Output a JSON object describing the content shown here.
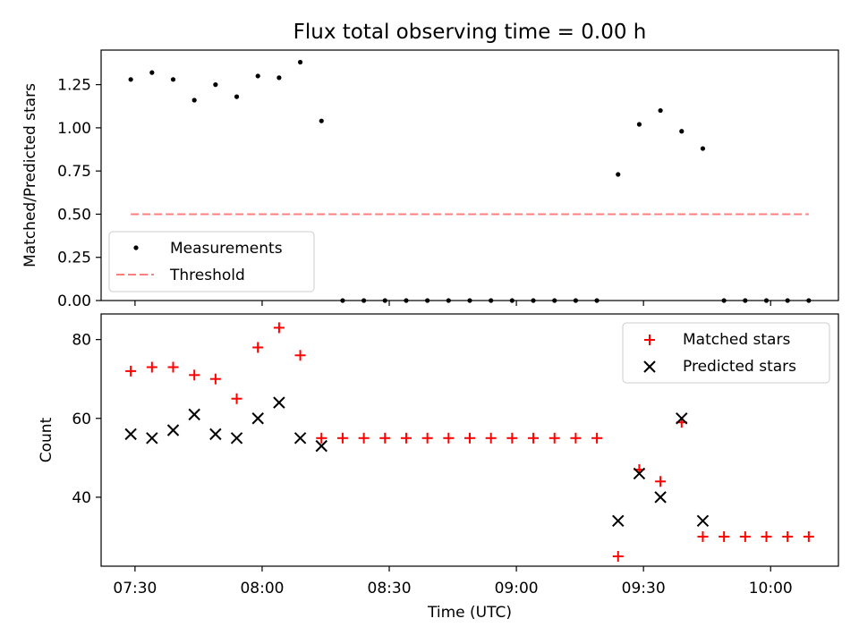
{
  "chart_data": [
    {
      "type": "scatter",
      "title": "Flux total observing time = 0.00 h",
      "xlabel": "",
      "ylabel": "Matched/Predicted stars",
      "xlim": [
        "07:22",
        "10:16"
      ],
      "ylim": [
        0,
        1.45
      ],
      "yticks": [
        "0.00",
        "0.25",
        "0.50",
        "0.75",
        "1.00",
        "1.25"
      ],
      "grid": false,
      "legend_position": "lower-left",
      "series": [
        {
          "name": "Measurements",
          "marker": "dot",
          "color": "#000000",
          "points": [
            [
              "07:29",
              1.28
            ],
            [
              "07:34",
              1.32
            ],
            [
              "07:39",
              1.28
            ],
            [
              "07:44",
              1.16
            ],
            [
              "07:49",
              1.25
            ],
            [
              "07:54",
              1.18
            ],
            [
              "07:59",
              1.3
            ],
            [
              "08:04",
              1.29
            ],
            [
              "08:09",
              1.38
            ],
            [
              "08:14",
              1.04
            ],
            [
              "08:19",
              0.0
            ],
            [
              "08:24",
              0.0
            ],
            [
              "08:29",
              0.0
            ],
            [
              "08:34",
              0.0
            ],
            [
              "08:39",
              0.0
            ],
            [
              "08:44",
              0.0
            ],
            [
              "08:49",
              0.0
            ],
            [
              "08:54",
              0.0
            ],
            [
              "08:59",
              0.0
            ],
            [
              "09:04",
              0.0
            ],
            [
              "09:09",
              0.0
            ],
            [
              "09:14",
              0.0
            ],
            [
              "09:19",
              0.0
            ],
            [
              "09:24",
              0.73
            ],
            [
              "09:29",
              1.02
            ],
            [
              "09:34",
              1.1
            ],
            [
              "09:39",
              0.98
            ],
            [
              "09:44",
              0.88
            ],
            [
              "09:49",
              0.0
            ],
            [
              "09:54",
              0.0
            ],
            [
              "09:59",
              0.0
            ],
            [
              "10:04",
              0.0
            ],
            [
              "10:09",
              0.0
            ]
          ]
        },
        {
          "name": "Threshold",
          "marker": "dashed-line",
          "color": "#ff7f7f",
          "points": [
            [
              "07:29",
              0.5
            ],
            [
              "10:09",
              0.5
            ]
          ]
        }
      ]
    },
    {
      "type": "scatter",
      "title": "",
      "xlabel": "Time (UTC)",
      "ylabel": "Count",
      "xlim": [
        "07:22",
        "10:16"
      ],
      "ylim": [
        22.5,
        86.5
      ],
      "xticks": [
        "07:30",
        "08:00",
        "08:30",
        "09:00",
        "09:30",
        "10:00"
      ],
      "yticks": [
        "40",
        "60",
        "80"
      ],
      "grid": false,
      "legend_position": "upper-right",
      "series": [
        {
          "name": "Matched stars",
          "marker": "plus",
          "color": "#ff0000",
          "points": [
            [
              "07:29",
              72
            ],
            [
              "07:34",
              73
            ],
            [
              "07:39",
              73
            ],
            [
              "07:44",
              71
            ],
            [
              "07:49",
              70
            ],
            [
              "07:54",
              65
            ],
            [
              "07:59",
              78
            ],
            [
              "08:04",
              83
            ],
            [
              "08:09",
              76
            ],
            [
              "08:14",
              55
            ],
            [
              "08:19",
              55
            ],
            [
              "08:24",
              55
            ],
            [
              "08:29",
              55
            ],
            [
              "08:34",
              55
            ],
            [
              "08:39",
              55
            ],
            [
              "08:44",
              55
            ],
            [
              "08:49",
              55
            ],
            [
              "08:54",
              55
            ],
            [
              "08:59",
              55
            ],
            [
              "09:04",
              55
            ],
            [
              "09:09",
              55
            ],
            [
              "09:14",
              55
            ],
            [
              "09:19",
              55
            ],
            [
              "09:24",
              25
            ],
            [
              "09:29",
              47
            ],
            [
              "09:34",
              44
            ],
            [
              "09:39",
              59
            ],
            [
              "09:44",
              30
            ],
            [
              "09:49",
              30
            ],
            [
              "09:54",
              30
            ],
            [
              "09:59",
              30
            ],
            [
              "10:04",
              30
            ],
            [
              "10:09",
              30
            ]
          ]
        },
        {
          "name": "Predicted stars",
          "marker": "x",
          "color": "#000000",
          "points": [
            [
              "07:29",
              56
            ],
            [
              "07:34",
              55
            ],
            [
              "07:39",
              57
            ],
            [
              "07:44",
              61
            ],
            [
              "07:49",
              56
            ],
            [
              "07:54",
              55
            ],
            [
              "07:59",
              60
            ],
            [
              "08:04",
              64
            ],
            [
              "08:09",
              55
            ],
            [
              "08:14",
              53
            ],
            [
              "09:24",
              34
            ],
            [
              "09:29",
              46
            ],
            [
              "09:34",
              40
            ],
            [
              "09:39",
              60
            ],
            [
              "09:44",
              34
            ]
          ]
        }
      ]
    }
  ]
}
